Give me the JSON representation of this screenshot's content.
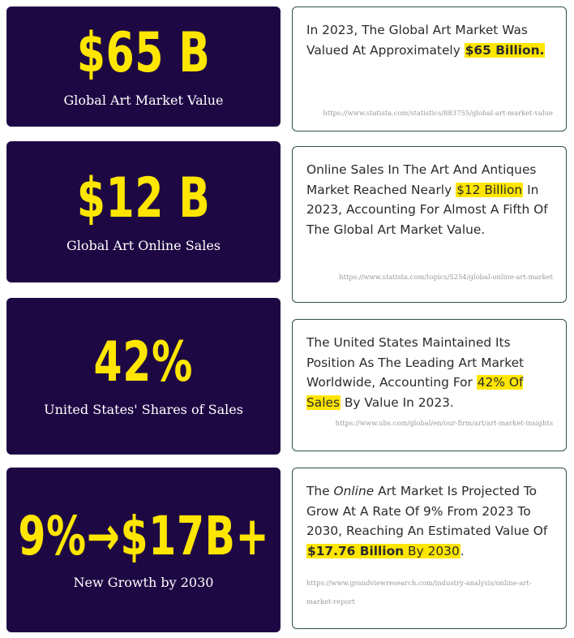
{
  "cards": [
    {
      "stat_value": "$65 B",
      "stat_label": "Global Art Market Value",
      "text_before": "In 2023, The Global Art Market Was Valued At Approximately ",
      "highlight": "$65 Billion.",
      "text_after": "",
      "source": "https://www.statista.com/statistics/883755/global-art-market-value"
    },
    {
      "stat_value": "$12 B",
      "stat_label": "Global Art Online Sales",
      "text_before": "Online Sales In The Art And Antiques Market Reached Nearly ",
      "highlight": "$12 Billion",
      "text_after": " In 2023, Accounting For Almost A Fifth Of The Global Art Market Value.",
      "source": "https://www.statista.com/topics/5254/global-online-art-market"
    },
    {
      "stat_value": "42%",
      "stat_label": "United States' Shares of Sales",
      "text_before": "The United States Maintained Its Position As The Leading Art Market Worldwide, Accounting For ",
      "highlight": "42% Of Sales",
      "text_after": " By Value In 2023.",
      "source": "https://www.ubs.com/global/en/our-firm/art/art-market-insights"
    },
    {
      "stat_value": "9%→$17B+",
      "stat_label": "New Growth by 2030",
      "text_the": "The ",
      "text_italic": "Online",
      "text_mid": " Art Market Is Projected To Grow At A Rate Of 9% From 2023 To 2030, Reaching An Estimated Value Of ",
      "highlight": "$17.76 Billion",
      "highlight_tail": " By 2030",
      "text_after": ".",
      "source": "https://www.grandviewresearch.com/industry-analysis/online-art-market-report"
    }
  ],
  "colors": {
    "card_bg": "#1e0844",
    "accent": "#ffe600",
    "label": "#ffffff",
    "body_text": "#2b2b2b",
    "source_text": "#9a9a9a",
    "text_card_border": "#2f4f4f"
  }
}
